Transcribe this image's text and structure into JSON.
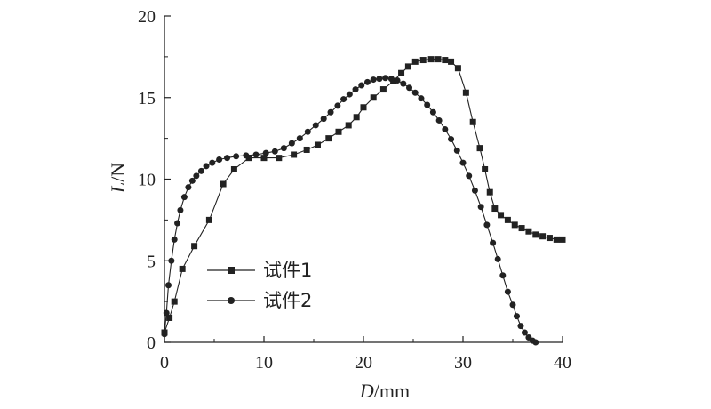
{
  "chart_data": {
    "type": "line",
    "title": "",
    "xlabel": {
      "var": "D",
      "unit": "/mm"
    },
    "ylabel": {
      "var": "L",
      "unit": "/N"
    },
    "xlim": [
      0,
      40
    ],
    "ylim": [
      0,
      20
    ],
    "xticks": [
      0,
      10,
      20,
      30,
      40
    ],
    "yticks": [
      0,
      5,
      10,
      15,
      20
    ],
    "grid": false,
    "legend_position": "center-left",
    "series": [
      {
        "name": "试件1",
        "marker": "square",
        "color": "#222222",
        "x": [
          0,
          0.5,
          1.0,
          1.8,
          3.0,
          4.5,
          5.9,
          7.0,
          8.5,
          10.0,
          11.5,
          13.0,
          14.3,
          15.4,
          16.5,
          17.5,
          18.5,
          19.3,
          20.0,
          21.0,
          22.0,
          23.0,
          23.8,
          24.5,
          25.2,
          26.0,
          26.8,
          27.5,
          28.2,
          28.8,
          29.5,
          30.3,
          31.0,
          31.7,
          32.2,
          32.7,
          33.2,
          33.8,
          34.5,
          35.2,
          35.9,
          36.6,
          37.3,
          38.0,
          38.7,
          39.4,
          40.0
        ],
        "y": [
          0.6,
          1.5,
          2.5,
          4.5,
          5.9,
          7.5,
          9.7,
          10.6,
          11.3,
          11.3,
          11.3,
          11.5,
          11.8,
          12.1,
          12.5,
          12.9,
          13.3,
          13.8,
          14.4,
          15.0,
          15.5,
          16.0,
          16.5,
          16.9,
          17.2,
          17.3,
          17.35,
          17.35,
          17.3,
          17.2,
          16.8,
          15.3,
          13.5,
          11.9,
          10.6,
          9.2,
          8.2,
          7.8,
          7.5,
          7.2,
          7.0,
          6.8,
          6.6,
          6.5,
          6.4,
          6.3,
          6.3
        ]
      },
      {
        "name": "试件2",
        "marker": "circle",
        "color": "#222222",
        "x": [
          0.0,
          0.2,
          0.4,
          0.7,
          1.0,
          1.3,
          1.6,
          2.0,
          2.4,
          2.8,
          3.2,
          3.7,
          4.2,
          4.8,
          5.5,
          6.3,
          7.2,
          8.2,
          9.2,
          10.2,
          11.1,
          12.0,
          12.8,
          13.6,
          14.4,
          15.2,
          16.0,
          16.7,
          17.4,
          18.0,
          18.6,
          19.2,
          19.8,
          20.4,
          21.0,
          21.6,
          22.2,
          22.8,
          23.4,
          24.0,
          24.6,
          25.2,
          25.8,
          26.4,
          27.0,
          27.6,
          28.2,
          28.8,
          29.4,
          30.0,
          30.6,
          31.2,
          31.8,
          32.4,
          33.0,
          33.5,
          34.0,
          34.5,
          35.0,
          35.4,
          35.8,
          36.2,
          36.6,
          37.0,
          37.3
        ],
        "y": [
          0.5,
          1.8,
          3.5,
          5.0,
          6.3,
          7.3,
          8.1,
          8.9,
          9.5,
          9.9,
          10.2,
          10.5,
          10.8,
          11.0,
          11.2,
          11.3,
          11.4,
          11.45,
          11.5,
          11.6,
          11.7,
          11.9,
          12.2,
          12.5,
          12.9,
          13.3,
          13.7,
          14.1,
          14.5,
          14.9,
          15.2,
          15.5,
          15.75,
          15.95,
          16.1,
          16.15,
          16.2,
          16.15,
          16.05,
          15.85,
          15.6,
          15.3,
          14.95,
          14.55,
          14.1,
          13.6,
          13.05,
          12.45,
          11.75,
          11.0,
          10.2,
          9.3,
          8.3,
          7.2,
          6.1,
          5.1,
          4.1,
          3.1,
          2.3,
          1.6,
          1.0,
          0.6,
          0.3,
          0.1,
          0.0
        ]
      }
    ]
  }
}
